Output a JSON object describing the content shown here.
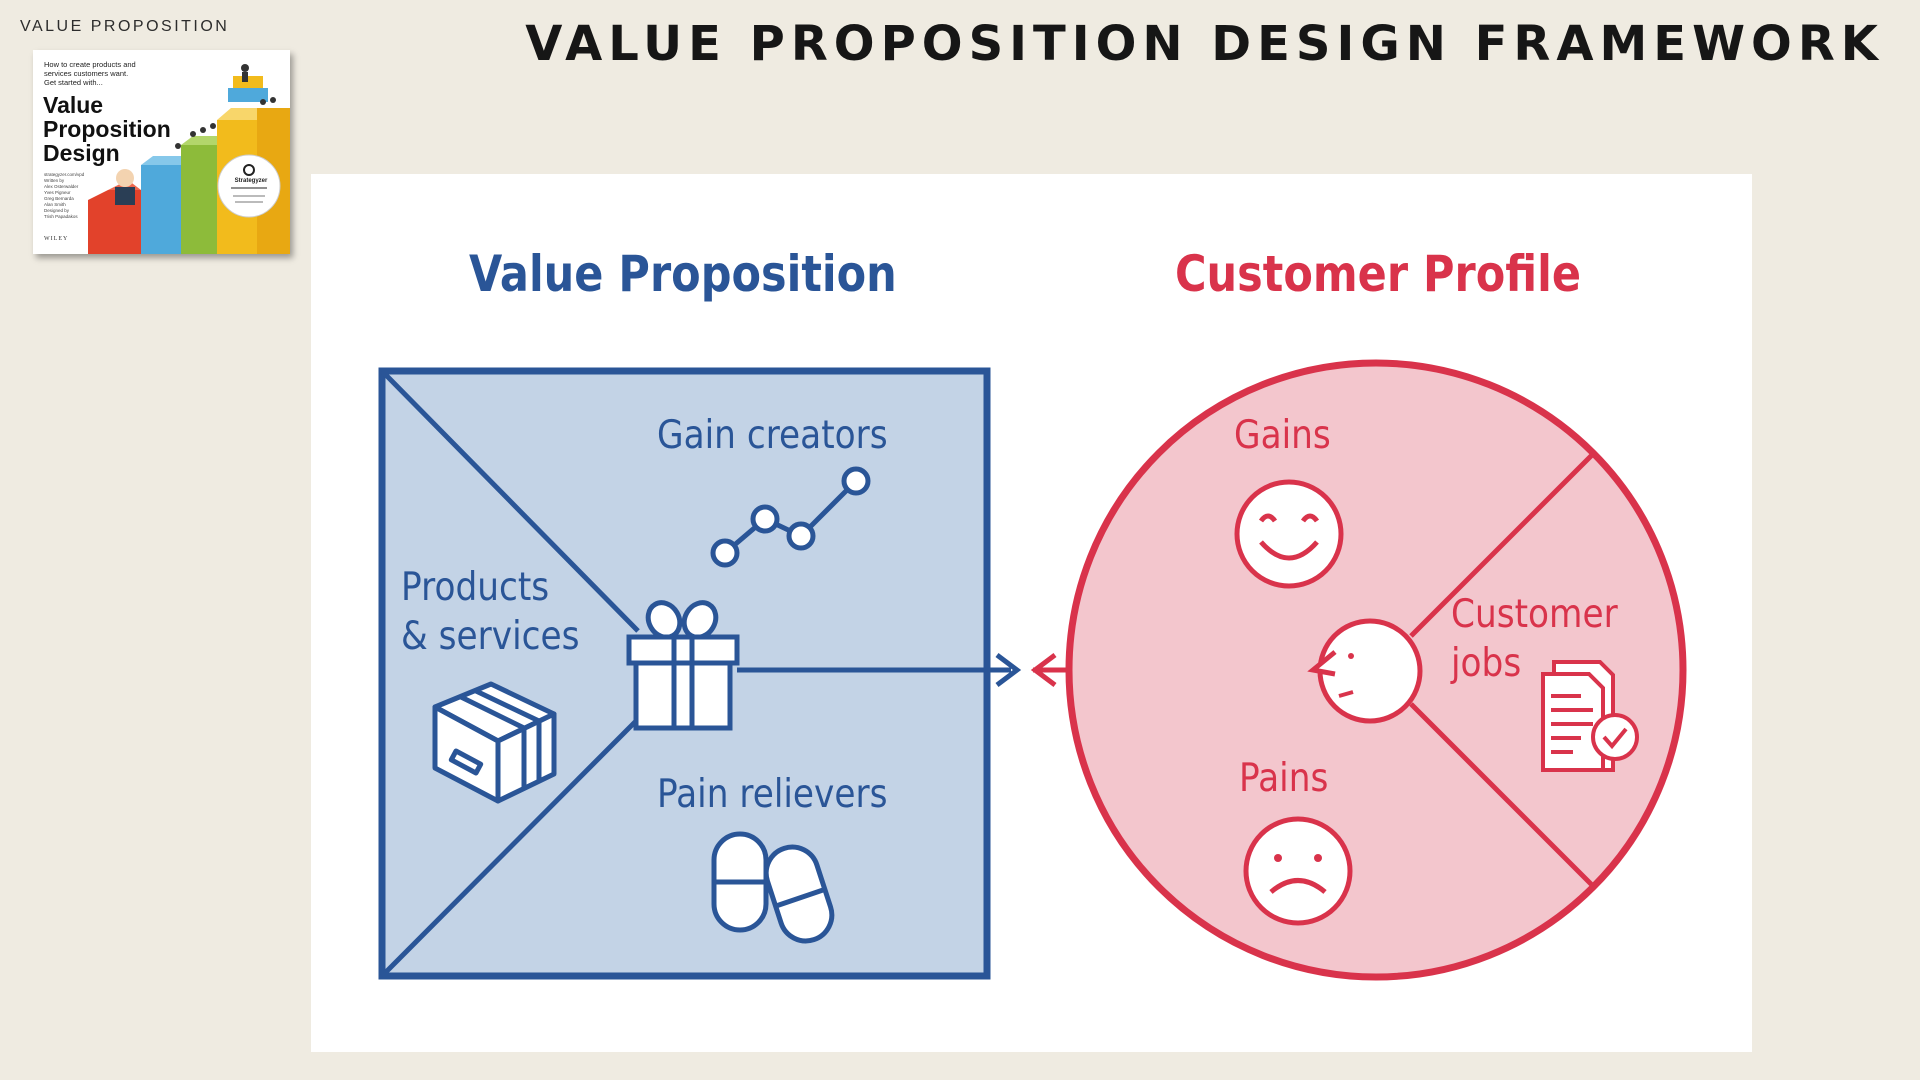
{
  "header": {
    "section_label": "VALUE PROPOSITION",
    "title": "VALUE PROPOSITION DESIGN FRAMEWORK"
  },
  "book_cover": {
    "tagline": "How to create products and\nservices customers want.\nGet started with...",
    "title": "Value\nProposition\nDesign",
    "authors": "strategyzer.com/vpd\nWritten by\nAlex Osterwalder\nYves Pigneur\nGreg Bernarda\nAlan Smith\nDesigned by\nTrish Papadakos",
    "series_badge": "Strategyzer",
    "publisher": "WILEY"
  },
  "diagram": {
    "value_proposition": {
      "title": "Value Proposition",
      "gain_creators": "Gain creators",
      "products_services_line1": "Products",
      "products_services_line2": "& services",
      "pain_relievers": "Pain relievers"
    },
    "customer_profile": {
      "title": "Customer Profile",
      "gains": "Gains",
      "customer_jobs_line1": "Customer",
      "customer_jobs_line2": "jobs",
      "pains": "Pains"
    },
    "colors": {
      "vp_stroke": "#2a5597",
      "vp_fill": "#c3d3e6",
      "cp_stroke": "#d9334b",
      "cp_fill": "#f3c6cd"
    }
  }
}
